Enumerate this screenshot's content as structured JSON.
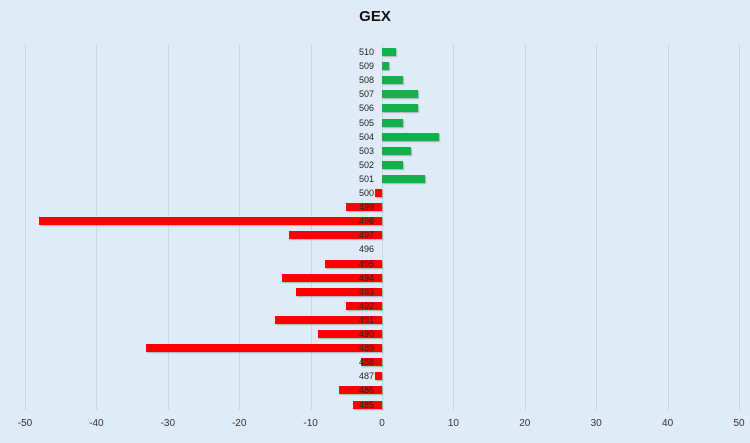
{
  "chart_data": {
    "type": "bar",
    "orientation": "horizontal",
    "title": "GEX",
    "xlabel": "",
    "ylabel": "",
    "xlim": [
      -50,
      50
    ],
    "x_ticks": [
      "-50",
      "-40",
      "-30",
      "-20",
      "-10",
      "0",
      "10",
      "20",
      "30",
      "40",
      "50"
    ],
    "grid": true,
    "legend": "none",
    "categories": [
      "510",
      "509",
      "508",
      "507",
      "506",
      "505",
      "504",
      "503",
      "502",
      "501",
      "500",
      "499",
      "498",
      "497",
      "496",
      "495",
      "494",
      "493",
      "492",
      "491",
      "490",
      "489",
      "488",
      "487",
      "486",
      "485"
    ],
    "values": [
      2,
      1,
      3,
      5,
      5,
      3,
      8,
      4,
      3,
      6,
      -1,
      -5,
      -48,
      -13,
      0,
      -8,
      -14,
      -12,
      -5,
      -15,
      -9,
      -33,
      -3,
      -1,
      -6,
      -4
    ],
    "colors": {
      "positive": "#11b04b",
      "negative": "#ff0000"
    }
  }
}
